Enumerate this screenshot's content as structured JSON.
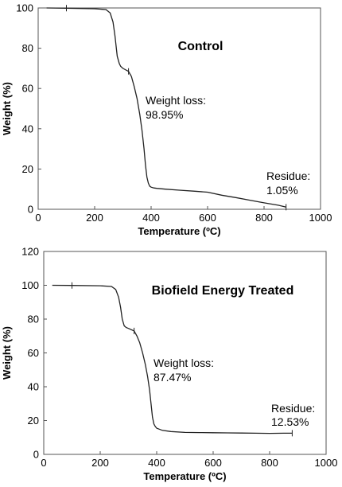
{
  "chart_data": [
    {
      "type": "line",
      "title": "Control",
      "xlabel": "Temperature (ºC)",
      "ylabel": "Weight (%)",
      "xlim": [
        0,
        1000
      ],
      "ylim": [
        0,
        100
      ],
      "xticks": [
        0,
        200,
        400,
        600,
        800,
        1000
      ],
      "yticks": [
        0,
        20,
        40,
        60,
        80,
        100
      ],
      "grid": false,
      "series": [
        {
          "x": [
            30,
            100,
            200,
            240,
            255,
            265,
            272,
            280,
            287,
            292,
            300,
            320,
            330,
            340,
            350,
            360,
            368,
            375,
            380,
            385,
            390,
            395,
            400,
            410,
            420,
            450,
            500,
            550,
            600,
            650,
            700,
            750,
            800,
            850,
            878
          ],
          "y": [
            100,
            99.9,
            99.6,
            99.2,
            97.5,
            93,
            86,
            76,
            72.5,
            71,
            70,
            68.5,
            66,
            61,
            55,
            47,
            39,
            30,
            22,
            16,
            13,
            11.5,
            11,
            10.6,
            10.4,
            10,
            9.5,
            9,
            8.5,
            7,
            5.8,
            4.5,
            3.2,
            2,
            1.05
          ]
        }
      ],
      "annotations": [
        {
          "lines": [
            "Weight loss:",
            "98.95%"
          ]
        },
        {
          "lines": [
            "Residue:",
            "1.05%"
          ]
        }
      ]
    },
    {
      "type": "line",
      "title": "Biofield Energy Treated",
      "xlabel": "Temperature (ºC)",
      "ylabel": "Weight (%)",
      "xlim": [
        0,
        1000
      ],
      "ylim": [
        0,
        120
      ],
      "xticks": [
        0,
        200,
        400,
        600,
        800,
        1000
      ],
      "yticks": [
        0,
        20,
        40,
        60,
        80,
        100,
        120
      ],
      "grid": false,
      "series": [
        {
          "x": [
            30,
            100,
            200,
            240,
            255,
            265,
            272,
            278,
            285,
            292,
            300,
            320,
            330,
            340,
            350,
            360,
            368,
            375,
            380,
            385,
            390,
            395,
            400,
            420,
            450,
            500,
            550,
            600,
            650,
            700,
            750,
            800,
            850,
            880
          ],
          "y": [
            100,
            99.9,
            99.7,
            99.3,
            97.5,
            93,
            87,
            80,
            76,
            75,
            74.5,
            73,
            70,
            66,
            60,
            53,
            46,
            38,
            30,
            22,
            18,
            16.5,
            15.5,
            14.2,
            13.5,
            13,
            12.9,
            12.8,
            12.7,
            12.6,
            12.5,
            12.4,
            12.5,
            12.53
          ]
        }
      ],
      "annotations": [
        {
          "lines": [
            "Weight loss:",
            "87.47%"
          ]
        },
        {
          "lines": [
            "Residue:",
            "12.53%"
          ]
        }
      ]
    }
  ]
}
